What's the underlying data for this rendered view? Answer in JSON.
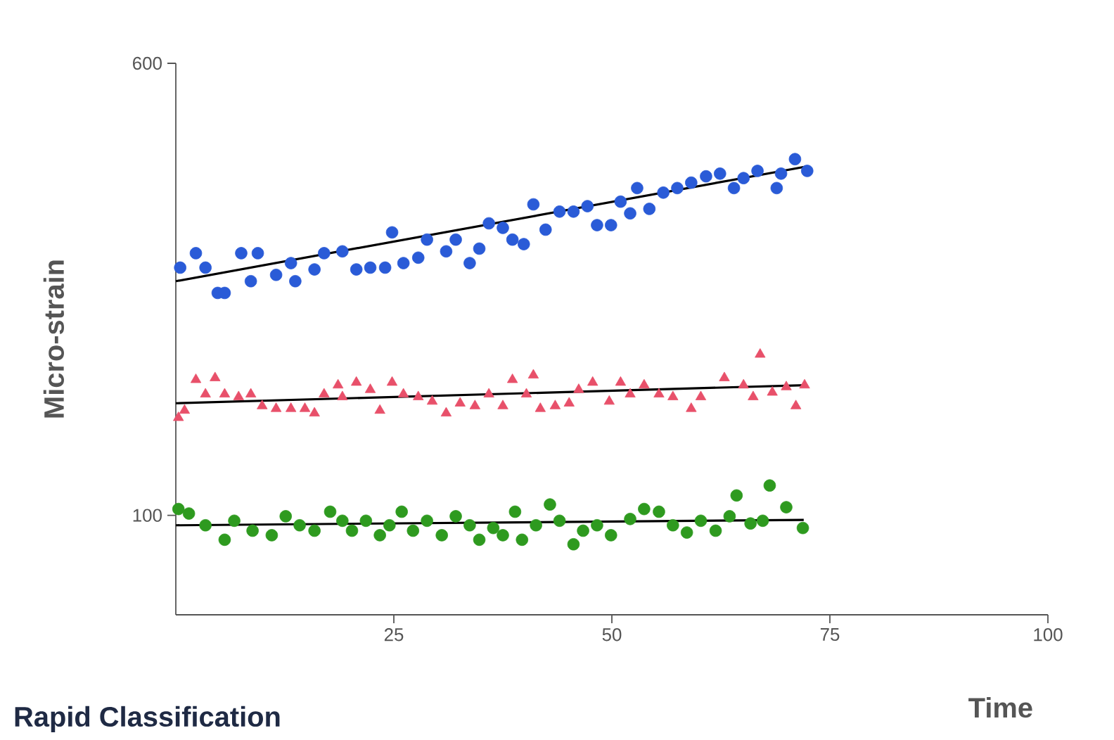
{
  "chart_data": {
    "type": "scatter",
    "xlabel": "Time",
    "ylabel": "Micro-strain",
    "xlim": [
      0,
      100
    ],
    "ylim": [
      -10,
      600
    ],
    "xticks": [
      25,
      50,
      75,
      100
    ],
    "yticks": [
      100,
      600
    ],
    "grid": false,
    "annotations": [
      "Rapid Classification"
    ],
    "series": [
      {
        "type": "scatter",
        "marker": "circle",
        "color": "#2a5bd7",
        "x": [
          0.5,
          2.3,
          3.4,
          4.8,
          5.6,
          7.5,
          8.6,
          9.4,
          11.5,
          13.2,
          13.7,
          15.9,
          17.0,
          19.1,
          20.7,
          22.3,
          24.0,
          24.8,
          26.1,
          27.8,
          28.8,
          31.0,
          32.1,
          33.7,
          34.8,
          35.9,
          37.5,
          38.6,
          39.9,
          41.0,
          42.4,
          44.0,
          45.6,
          47.2,
          48.3,
          49.9,
          51.0,
          52.1,
          52.9,
          54.3,
          55.9,
          57.5,
          59.1,
          60.8,
          62.4,
          64.0,
          65.1,
          66.7,
          68.9,
          69.4,
          71.0,
          72.4
        ],
        "values": [
          374,
          390,
          374,
          346,
          346,
          390,
          359,
          390,
          366,
          379,
          359,
          372,
          390,
          392,
          372,
          374,
          374,
          413,
          379,
          385,
          405,
          392,
          405,
          379,
          395,
          423,
          418,
          405,
          400,
          444,
          416,
          436,
          436,
          442,
          421,
          421,
          447,
          434,
          462,
          439,
          457,
          462,
          468,
          475,
          478,
          462,
          473,
          481,
          462,
          478,
          494,
          481
        ]
      },
      {
        "type": "line",
        "marker": "none",
        "color": "#000000",
        "x": [
          0,
          72.4
        ],
        "values": [
          359,
          486
        ]
      },
      {
        "type": "scatter",
        "marker": "triangle",
        "color": "#e8506a",
        "x": [
          0.3,
          1.0,
          2.3,
          3.4,
          4.5,
          5.6,
          7.2,
          8.6,
          9.9,
          11.5,
          13.2,
          14.8,
          15.9,
          17.0,
          18.6,
          19.1,
          20.7,
          22.3,
          23.4,
          24.8,
          26.1,
          27.8,
          29.4,
          31.0,
          32.6,
          34.3,
          35.9,
          37.5,
          38.6,
          40.2,
          41.0,
          41.8,
          43.5,
          45.1,
          46.2,
          47.8,
          49.7,
          51.0,
          52.1,
          53.7,
          55.4,
          57.0,
          59.1,
          60.2,
          62.9,
          65.1,
          66.2,
          67.0,
          68.4,
          70.0,
          71.1,
          72.1
        ],
        "values": [
          208,
          216,
          250,
          234,
          252,
          234,
          231,
          234,
          221,
          218,
          218,
          218,
          213,
          234,
          244,
          231,
          247,
          239,
          216,
          247,
          234,
          231,
          226,
          213,
          224,
          221,
          234,
          221,
          250,
          234,
          255,
          218,
          221,
          224,
          239,
          247,
          226,
          247,
          234,
          244,
          234,
          231,
          218,
          231,
          252,
          244,
          231,
          278,
          236,
          242,
          221,
          244
        ]
      },
      {
        "type": "line",
        "marker": "none",
        "color": "#000000",
        "x": [
          0,
          72.1
        ],
        "values": [
          224,
          244
        ]
      },
      {
        "type": "scatter",
        "marker": "circle",
        "color": "#2e9a1f",
        "x": [
          0.3,
          1.5,
          3.4,
          5.6,
          6.7,
          8.8,
          11.0,
          12.6,
          14.2,
          15.9,
          17.7,
          19.1,
          20.2,
          21.8,
          23.4,
          24.5,
          25.9,
          27.2,
          28.8,
          30.5,
          32.1,
          33.7,
          34.8,
          36.4,
          37.5,
          38.9,
          39.7,
          41.3,
          42.9,
          44.0,
          45.6,
          46.7,
          48.3,
          49.9,
          52.1,
          53.7,
          55.4,
          57.0,
          58.6,
          60.2,
          61.9,
          63.5,
          64.3,
          65.9,
          67.3,
          68.1,
          70.0,
          71.9
        ],
        "values": [
          107,
          102,
          89,
          73,
          94,
          83,
          78,
          99,
          89,
          83,
          104,
          94,
          83,
          94,
          78,
          89,
          104,
          83,
          94,
          78,
          99,
          89,
          73,
          86,
          78,
          104,
          73,
          89,
          112,
          94,
          68,
          83,
          89,
          78,
          96,
          107,
          104,
          89,
          81,
          94,
          83,
          99,
          122,
          91,
          94,
          133,
          109,
          86
        ]
      },
      {
        "type": "line",
        "marker": "none",
        "color": "#000000",
        "x": [
          0,
          72
        ],
        "values": [
          89,
          95
        ]
      }
    ]
  }
}
